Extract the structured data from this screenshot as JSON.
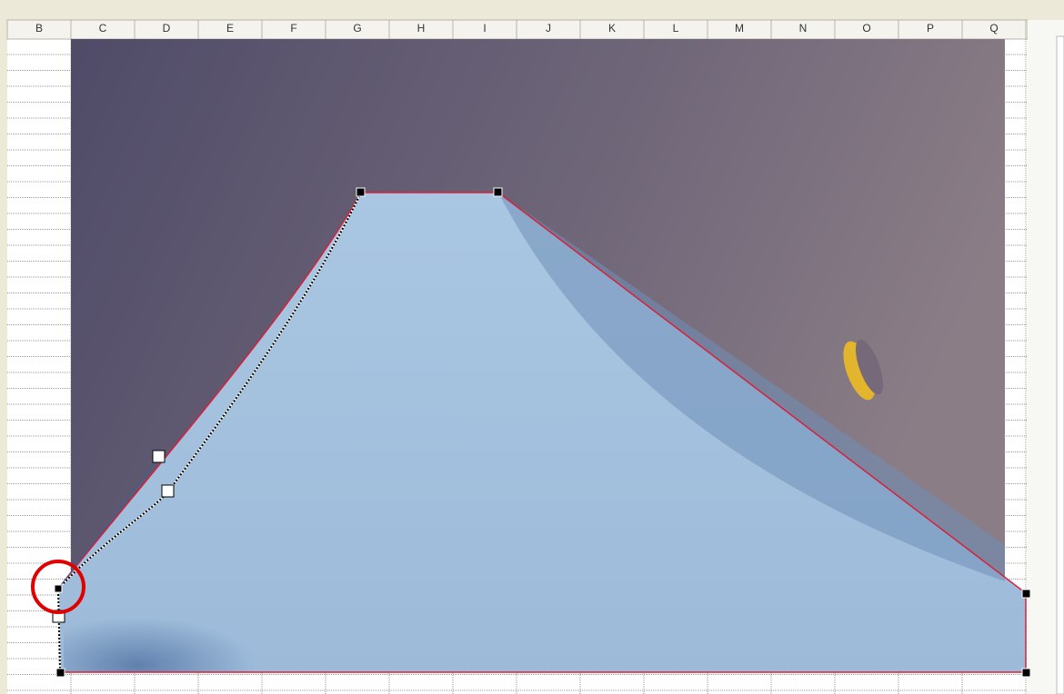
{
  "spreadsheet": {
    "columns": [
      "B",
      "C",
      "D",
      "E",
      "F",
      "G",
      "H",
      "I",
      "J",
      "K",
      "L",
      "M",
      "N",
      "O",
      "P",
      "Q"
    ]
  }
}
